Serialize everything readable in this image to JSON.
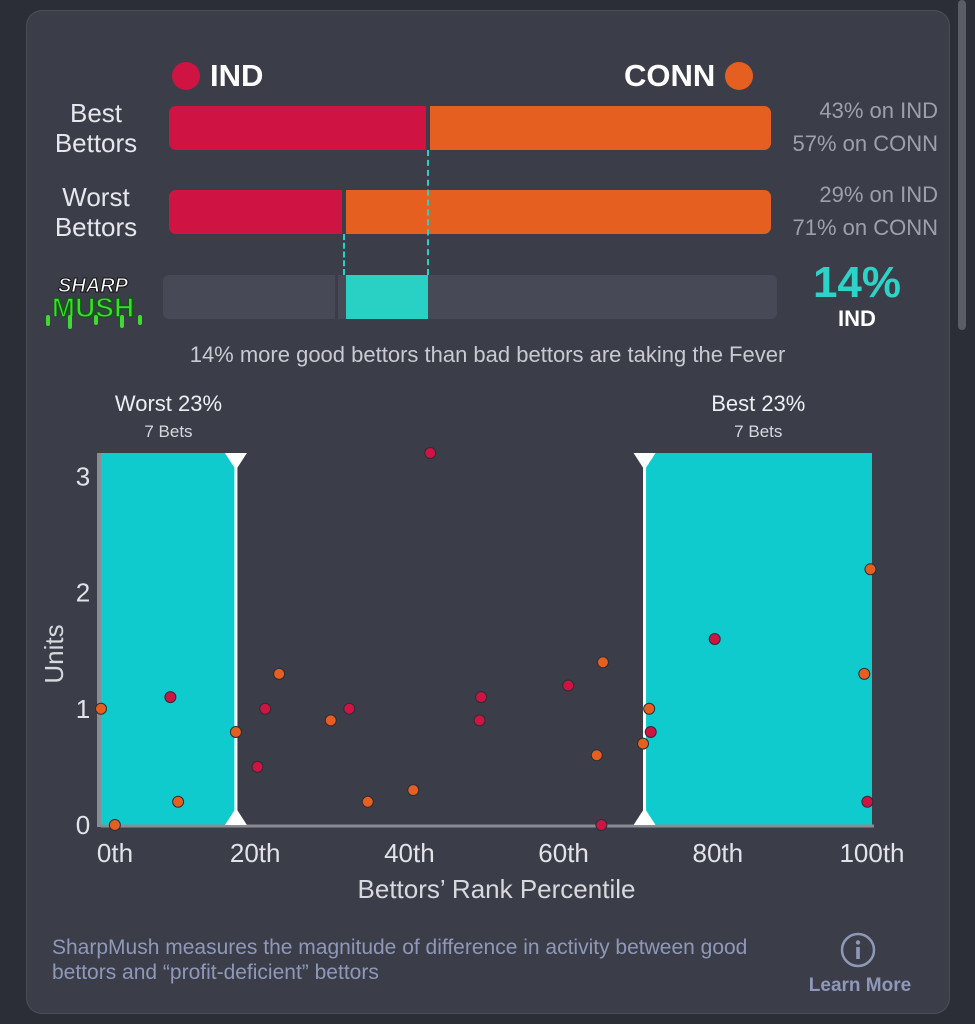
{
  "teams": {
    "left": {
      "abbr": "IND",
      "color": "#cf1443"
    },
    "right": {
      "abbr": "CONN",
      "color": "#e56020"
    }
  },
  "rows": [
    {
      "label_line1": "Best",
      "label_line2": "Bettors",
      "left_pct": 43,
      "right_pct": 57,
      "left_text": "43% on IND",
      "right_text": "57% on CONN"
    },
    {
      "label_line1": "Worst",
      "label_line2": "Bettors",
      "left_pct": 29,
      "right_pct": 71,
      "left_text": "29% on IND",
      "right_text": "71% on CONN"
    }
  ],
  "sharpmush": {
    "logo_line1": "SHARP",
    "logo_line2": "MUSH",
    "value": "14%",
    "team": "IND",
    "accent": "#29d0c4",
    "caption": "14% more good bettors than bad bettors are taking the Fever"
  },
  "chart_data": {
    "type": "scatter",
    "xlabel": "Bettors’ Rank Percentile",
    "ylabel": "Units",
    "xlim": [
      0,
      100
    ],
    "ylim": [
      0,
      3.2
    ],
    "x_ticks": [
      {
        "value": 0,
        "label": "0th"
      },
      {
        "value": 20,
        "label": "20th"
      },
      {
        "value": 40,
        "label": "40th"
      },
      {
        "value": 60,
        "label": "60th"
      },
      {
        "value": 80,
        "label": "80th"
      },
      {
        "value": 100,
        "label": "100th"
      }
    ],
    "y_ticks": [
      {
        "value": 0,
        "label": "0"
      },
      {
        "value": 1,
        "label": "1"
      },
      {
        "value": 2,
        "label": "2"
      },
      {
        "value": 3,
        "label": "3"
      }
    ],
    "regions": [
      {
        "from": 0,
        "to": 17.5,
        "title": "Worst 23%",
        "subtitle": "7 Bets"
      },
      {
        "from": 70.5,
        "to": 100,
        "title": "Best 23%",
        "subtitle": "7 Bets"
      }
    ],
    "series": [
      {
        "team": "IND",
        "color": "#cf1443",
        "points": [
          [
            9,
            1.1
          ],
          [
            20.3,
            0.5
          ],
          [
            21.3,
            1.0
          ],
          [
            32.2,
            1.0
          ],
          [
            42.7,
            3.2
          ],
          [
            49.3,
            1.1
          ],
          [
            49.1,
            0.9
          ],
          [
            60.6,
            1.2
          ],
          [
            64.9,
            0.0
          ],
          [
            71.3,
            0.8
          ],
          [
            79.6,
            1.6
          ],
          [
            99.4,
            0.2
          ]
        ]
      },
      {
        "team": "CONN",
        "color": "#e56020",
        "points": [
          [
            0,
            1.0
          ],
          [
            1.8,
            0.0
          ],
          [
            10,
            0.2
          ],
          [
            17.5,
            0.8
          ],
          [
            23.1,
            1.3
          ],
          [
            29.8,
            0.9
          ],
          [
            34.6,
            0.2
          ],
          [
            40.5,
            0.3
          ],
          [
            64.3,
            0.6
          ],
          [
            65.1,
            1.4
          ],
          [
            70.3,
            0.7
          ],
          [
            71.1,
            1.0
          ],
          [
            99.0,
            1.3
          ],
          [
            99.8,
            2.2
          ]
        ]
      }
    ]
  },
  "footer": {
    "description": "SharpMush measures the magnitude of difference in activity between good bettors and “profit-deficient” bettors",
    "learn_more": "Learn More"
  }
}
